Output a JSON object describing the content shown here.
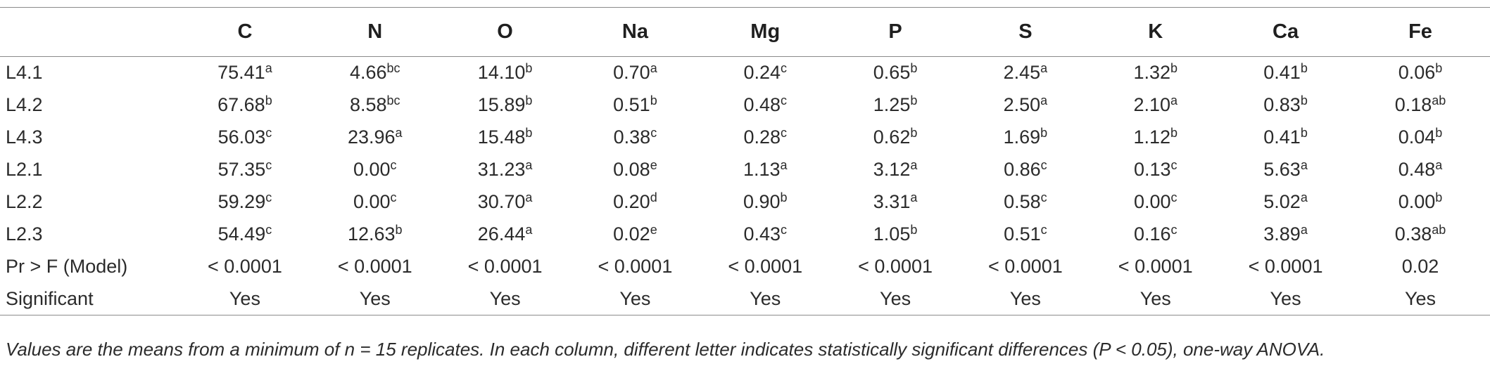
{
  "table": {
    "columns": [
      "C",
      "N",
      "O",
      "Na",
      "Mg",
      "P",
      "S",
      "K",
      "Ca",
      "Fe"
    ],
    "rows": [
      {
        "label": "L4.1",
        "cells": [
          {
            "v": "75.41",
            "s": "a"
          },
          {
            "v": "4.66",
            "s": "bc"
          },
          {
            "v": "14.10",
            "s": "b"
          },
          {
            "v": "0.70",
            "s": "a"
          },
          {
            "v": "0.24",
            "s": "c"
          },
          {
            "v": "0.65",
            "s": "b"
          },
          {
            "v": "2.45",
            "s": "a"
          },
          {
            "v": "1.32",
            "s": "b"
          },
          {
            "v": "0.41",
            "s": "b"
          },
          {
            "v": "0.06",
            "s": "b"
          }
        ]
      },
      {
        "label": "L4.2",
        "cells": [
          {
            "v": "67.68",
            "s": "b"
          },
          {
            "v": "8.58",
            "s": "bc"
          },
          {
            "v": "15.89",
            "s": "b"
          },
          {
            "v": "0.51",
            "s": "b"
          },
          {
            "v": "0.48",
            "s": "c"
          },
          {
            "v": "1.25",
            "s": "b"
          },
          {
            "v": "2.50",
            "s": "a"
          },
          {
            "v": "2.10",
            "s": "a"
          },
          {
            "v": "0.83",
            "s": "b"
          },
          {
            "v": "0.18",
            "s": "ab"
          }
        ]
      },
      {
        "label": "L4.3",
        "cells": [
          {
            "v": "56.03",
            "s": "c"
          },
          {
            "v": "23.96",
            "s": "a"
          },
          {
            "v": "15.48",
            "s": "b"
          },
          {
            "v": "0.38",
            "s": "c"
          },
          {
            "v": "0.28",
            "s": "c"
          },
          {
            "v": "0.62",
            "s": "b"
          },
          {
            "v": "1.69",
            "s": "b"
          },
          {
            "v": "1.12",
            "s": "b"
          },
          {
            "v": "0.41",
            "s": "b"
          },
          {
            "v": "0.04",
            "s": "b"
          }
        ]
      },
      {
        "label": "L2.1",
        "cells": [
          {
            "v": "57.35",
            "s": "c"
          },
          {
            "v": "0.00",
            "s": "c"
          },
          {
            "v": "31.23",
            "s": "a"
          },
          {
            "v": "0.08",
            "s": "e"
          },
          {
            "v": "1.13",
            "s": "a"
          },
          {
            "v": "3.12",
            "s": "a"
          },
          {
            "v": "0.86",
            "s": "c"
          },
          {
            "v": "0.13",
            "s": "c"
          },
          {
            "v": "5.63",
            "s": "a"
          },
          {
            "v": "0.48",
            "s": "a"
          }
        ]
      },
      {
        "label": "L2.2",
        "cells": [
          {
            "v": "59.29",
            "s": "c"
          },
          {
            "v": "0.00",
            "s": "c"
          },
          {
            "v": "30.70",
            "s": "a"
          },
          {
            "v": "0.20",
            "s": "d"
          },
          {
            "v": "0.90",
            "s": "b"
          },
          {
            "v": "3.31",
            "s": "a"
          },
          {
            "v": "0.58",
            "s": "c"
          },
          {
            "v": "0.00",
            "s": "c"
          },
          {
            "v": "5.02",
            "s": "a"
          },
          {
            "v": "0.00",
            "s": "b"
          }
        ]
      },
      {
        "label": "L2.3",
        "cells": [
          {
            "v": "54.49",
            "s": "c"
          },
          {
            "v": "12.63",
            "s": "b"
          },
          {
            "v": "26.44",
            "s": "a"
          },
          {
            "v": "0.02",
            "s": "e"
          },
          {
            "v": "0.43",
            "s": "c"
          },
          {
            "v": "1.05",
            "s": "b"
          },
          {
            "v": "0.51",
            "s": "c"
          },
          {
            "v": "0.16",
            "s": "c"
          },
          {
            "v": "3.89",
            "s": "a"
          },
          {
            "v": "0.38",
            "s": "ab"
          }
        ]
      },
      {
        "label": "Pr > F (Model)",
        "cells": [
          {
            "v": "< 0.0001",
            "s": ""
          },
          {
            "v": "< 0.0001",
            "s": ""
          },
          {
            "v": "< 0.0001",
            "s": ""
          },
          {
            "v": "< 0.0001",
            "s": ""
          },
          {
            "v": "< 0.0001",
            "s": ""
          },
          {
            "v": "< 0.0001",
            "s": ""
          },
          {
            "v": "< 0.0001",
            "s": ""
          },
          {
            "v": "< 0.0001",
            "s": ""
          },
          {
            "v": "< 0.0001",
            "s": ""
          },
          {
            "v": "0.02",
            "s": ""
          }
        ]
      },
      {
        "label": "Significant",
        "cells": [
          {
            "v": "Yes",
            "s": ""
          },
          {
            "v": "Yes",
            "s": ""
          },
          {
            "v": "Yes",
            "s": ""
          },
          {
            "v": "Yes",
            "s": ""
          },
          {
            "v": "Yes",
            "s": ""
          },
          {
            "v": "Yes",
            "s": ""
          },
          {
            "v": "Yes",
            "s": ""
          },
          {
            "v": "Yes",
            "s": ""
          },
          {
            "v": "Yes",
            "s": ""
          },
          {
            "v": "Yes",
            "s": ""
          }
        ]
      }
    ]
  },
  "footnote": "Values are the means from a minimum of n = 15 replicates. In each column, different letter indicates statistically significant differences (P < 0.05), one-way ANOVA."
}
